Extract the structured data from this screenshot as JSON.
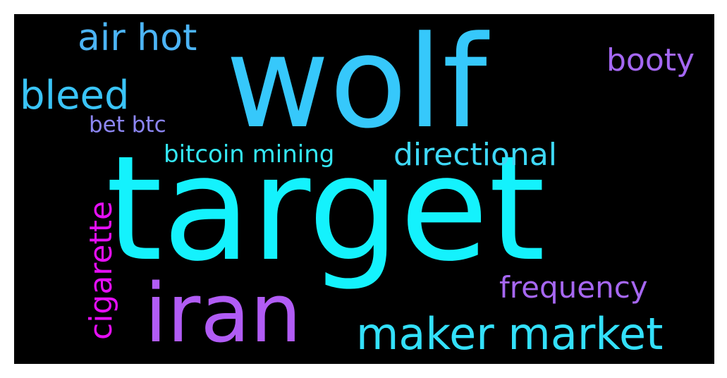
{
  "wordcloud": {
    "background": "#000000",
    "words": [
      {
        "id": "wolf",
        "text": "wolf",
        "color": "#36c8fb"
      },
      {
        "id": "target",
        "text": "target",
        "color": "#14f2fd"
      },
      {
        "id": "iran",
        "text": "iran",
        "color": "#b15cf5"
      },
      {
        "id": "maker",
        "text": "maker market",
        "color": "#33e0fa"
      },
      {
        "id": "air",
        "text": "air hot",
        "color": "#4cb4f6"
      },
      {
        "id": "bleed",
        "text": "bleed",
        "color": "#3ac4f8"
      },
      {
        "id": "booty",
        "text": "booty",
        "color": "#a467f3"
      },
      {
        "id": "directional",
        "text": "directional",
        "color": "#3fd8f8"
      },
      {
        "id": "bitcoin",
        "text": "bitcoin mining",
        "color": "#34e8f6"
      },
      {
        "id": "bet",
        "text": "bet btc",
        "color": "#8c86f3"
      },
      {
        "id": "frequency",
        "text": "frequency",
        "color": "#a667f2"
      },
      {
        "id": "cigarette",
        "text": "cigarette",
        "color": "#e50ff6"
      }
    ]
  }
}
